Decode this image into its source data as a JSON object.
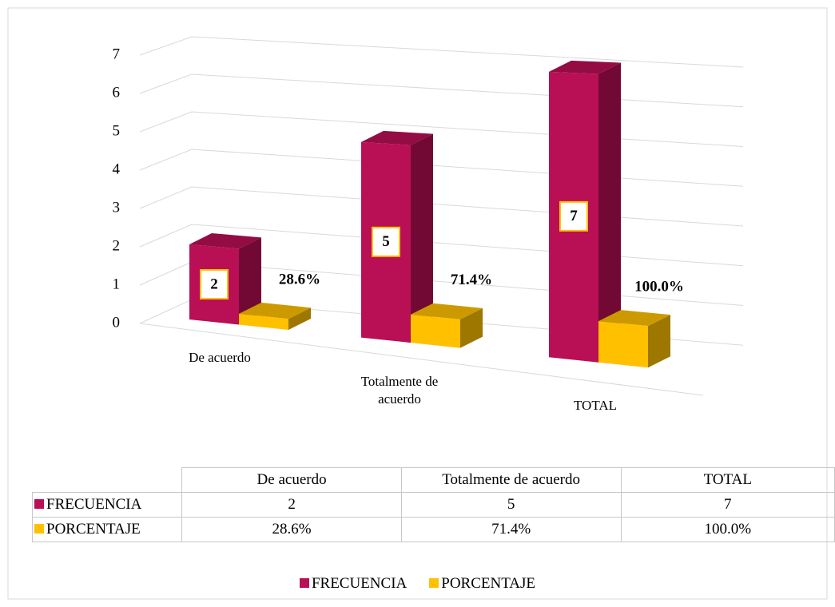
{
  "chart_data": {
    "type": "bar3d",
    "categories": [
      "De acuerdo",
      "Totalmente de acuerdo",
      "TOTAL"
    ],
    "series": [
      {
        "name": "FRECUENCIA",
        "color": "#b80f55",
        "values": [
          2,
          5,
          7
        ]
      },
      {
        "name": "PORCENTAJE",
        "color": "#ffc000",
        "values": [
          0.286,
          0.714,
          1.0
        ],
        "value_labels": [
          "28.6%",
          "71.4%",
          "100.0%"
        ]
      }
    ],
    "ylim": [
      0,
      7
    ],
    "yticks": [
      0,
      1,
      2,
      3,
      4,
      5,
      6,
      7
    ],
    "grid": true,
    "legend": "bottom",
    "data_table": true
  }
}
